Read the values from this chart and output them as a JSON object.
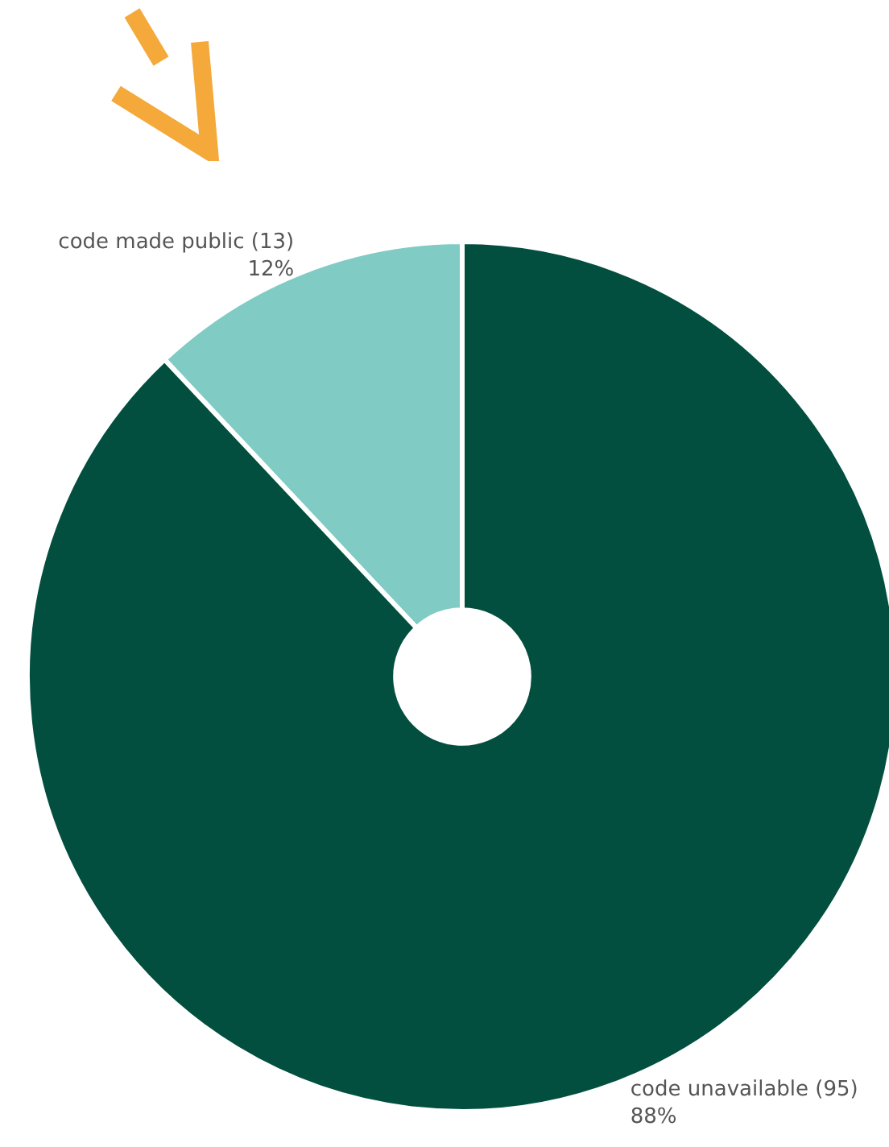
{
  "chart_data": {
    "type": "donut",
    "categories": [
      "code made public (13)",
      "code unavailable (95)"
    ],
    "values": [
      12,
      88
    ],
    "colors": [
      "#80cbc4",
      "#024f3f"
    ],
    "value_labels": [
      "12%",
      "88%"
    ]
  }
}
